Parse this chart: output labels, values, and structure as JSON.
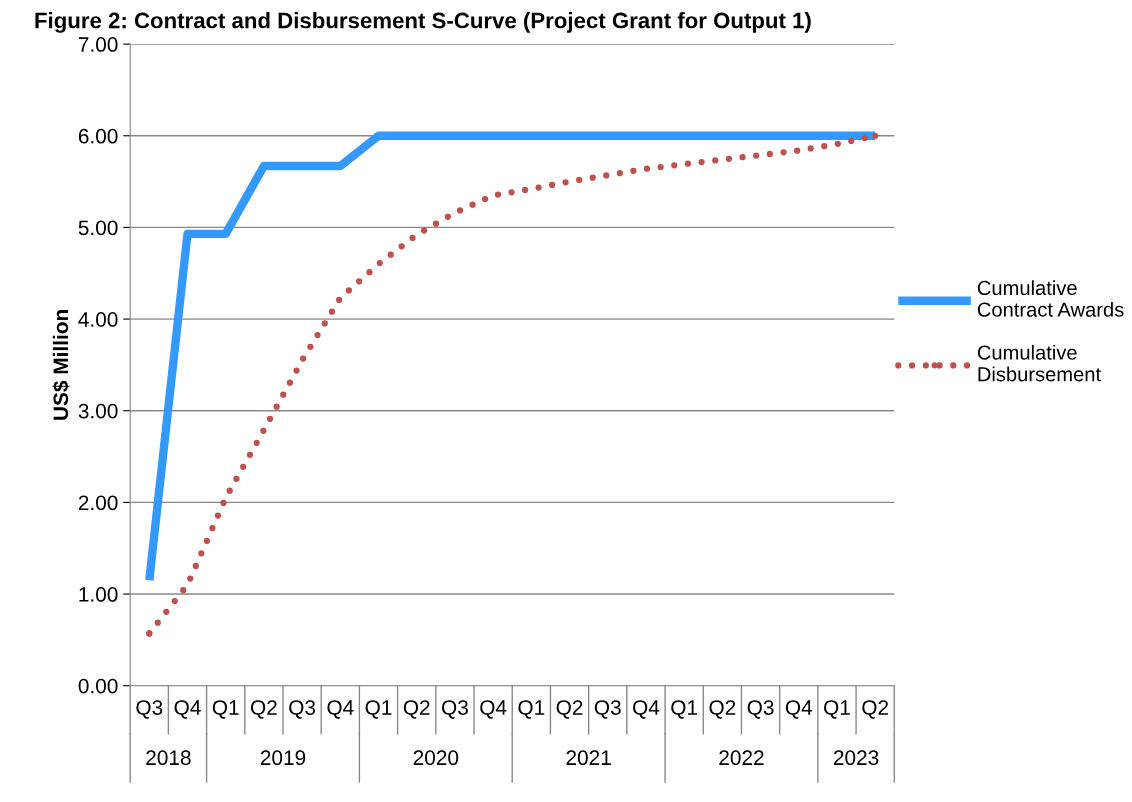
{
  "chart_data": {
    "type": "line",
    "title": "Figure 2: Contract and Disbursement S-Curve (Project Grant for Output 1)",
    "ylabel": "US$ Million",
    "categories": [
      "Q3",
      "Q4",
      "Q1",
      "Q2",
      "Q3",
      "Q4",
      "Q1",
      "Q2",
      "Q3",
      "Q4",
      "Q1",
      "Q2",
      "Q3",
      "Q4",
      "Q1",
      "Q2",
      "Q3",
      "Q4",
      "Q1",
      "Q2"
    ],
    "series": [
      {
        "name": "Cumulative Contract Awards",
        "color": "#3399ff",
        "line_style": "solid",
        "values": [
          1.15,
          4.93,
          4.93,
          5.67,
          5.67,
          5.67,
          6.0,
          6.0,
          6.0,
          6.0,
          6.0,
          6.0,
          6.0,
          6.0,
          6.0,
          6.0,
          6.0,
          6.0,
          6.0,
          6.0
        ]
      },
      {
        "name": "Cumulative Disbursement",
        "color": "#c0504d",
        "line_style": "dotted",
        "values": [
          0.57,
          1.1,
          2.05,
          2.79,
          3.55,
          4.23,
          4.6,
          4.92,
          5.16,
          5.35,
          5.42,
          5.5,
          5.57,
          5.64,
          5.69,
          5.74,
          5.79,
          5.84,
          5.91,
          6.0
        ]
      }
    ],
    "ylim": [
      0,
      7
    ],
    "yticks": [
      {
        "value": 0,
        "label": "0.00"
      },
      {
        "value": 1,
        "label": "1.00"
      },
      {
        "value": 2,
        "label": "2.00"
      },
      {
        "value": 3,
        "label": "3.00"
      },
      {
        "value": 4,
        "label": "4.00"
      },
      {
        "value": 5,
        "label": "5.00"
      },
      {
        "value": 6,
        "label": "6.00"
      },
      {
        "value": 7,
        "label": "7.00"
      }
    ],
    "grid": "y",
    "legend": "right",
    "annotations": [
      "2018",
      "2019",
      "2020",
      "2021",
      "2022",
      "2023"
    ]
  }
}
